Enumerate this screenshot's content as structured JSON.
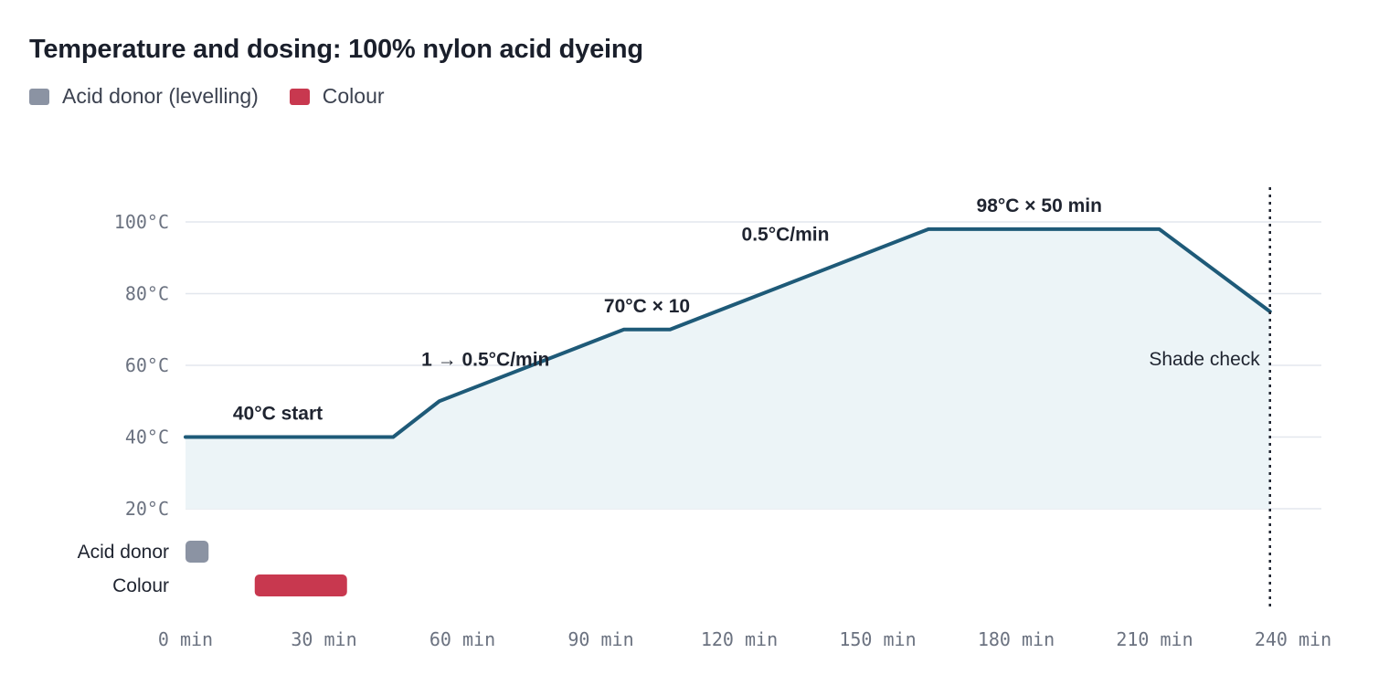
{
  "title": "Temperature and dosing: 100% nylon acid dyeing",
  "legend": [
    {
      "label": "Acid donor (levelling)",
      "color": "#8b93a3"
    },
    {
      "label": "Colour",
      "color": "#c8384f"
    }
  ],
  "chart_data": {
    "type": "line",
    "title": "Temperature and dosing: 100% nylon acid dyeing",
    "x_unit": "min",
    "y_unit": "°C",
    "xlim": [
      0,
      240
    ],
    "ylim": [
      20,
      100
    ],
    "x_ticks": [
      "0 min",
      "30 min",
      "60 min",
      "90 min",
      "120 min",
      "150 min",
      "180 min",
      "210 min",
      "240 min"
    ],
    "x_tick_values": [
      0,
      30,
      60,
      90,
      120,
      150,
      180,
      210,
      240
    ],
    "y_ticks": [
      "20°C",
      "40°C",
      "60°C",
      "80°C",
      "100°C"
    ],
    "y_tick_values": [
      20,
      40,
      60,
      80,
      100
    ],
    "grid": "horizontal",
    "series": [
      {
        "color": "#1e5a78",
        "fill": "#ecf4f7",
        "points": [
          [
            0,
            40
          ],
          [
            45,
            40
          ],
          [
            55,
            50
          ],
          [
            95,
            70
          ],
          [
            105,
            70
          ],
          [
            161,
            98
          ],
          [
            211,
            98
          ],
          [
            235,
            75
          ]
        ]
      }
    ],
    "annotations": [
      {
        "text": "40°C start",
        "x": 20,
        "y": 40
      },
      {
        "text": "1 → 0.5°C/min",
        "x": 65,
        "y": 55
      },
      {
        "text": "70°C × 10",
        "x": 100,
        "y": 70
      },
      {
        "text": "0.5°C/min",
        "x": 130,
        "y": 90
      },
      {
        "text": "98°C × 50 min",
        "x": 185,
        "y": 98
      }
    ],
    "marker": {
      "x": 235,
      "label": "Shade check"
    },
    "dosing": [
      {
        "row": "Acid donor",
        "start": 0,
        "end": 5,
        "color": "#8b93a3"
      },
      {
        "row": "Colour",
        "start": 15,
        "end": 35,
        "color": "#c8384f"
      }
    ]
  }
}
